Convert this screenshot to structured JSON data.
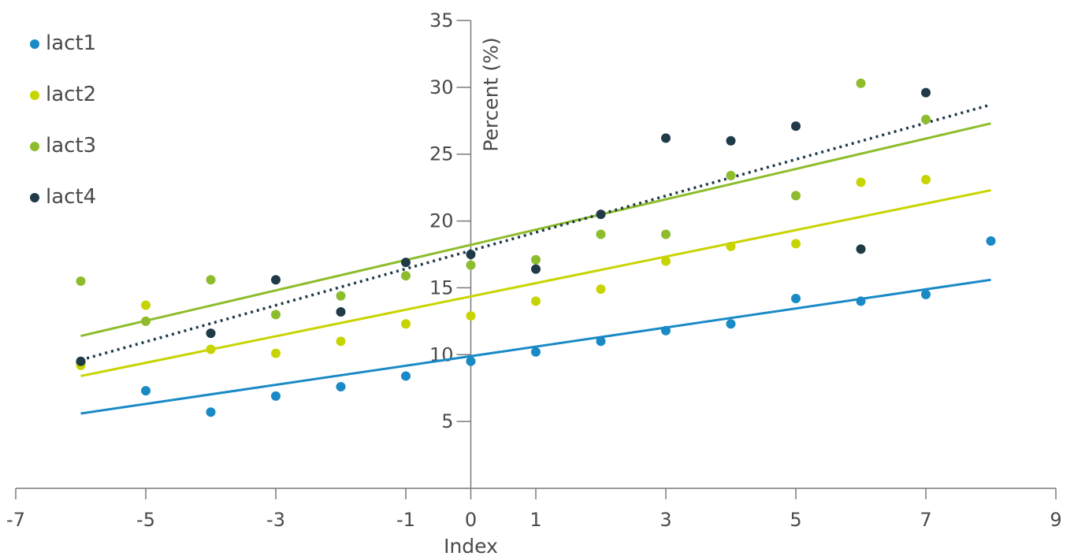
{
  "chart_data": {
    "type": "scatter",
    "title": "",
    "xlabel": "Index",
    "ylabel": "Percent (%)",
    "xlim": [
      -7,
      9
    ],
    "ylim": [
      0,
      35
    ],
    "x_ticks": [
      -7,
      -5,
      -3,
      -1,
      0,
      1,
      3,
      5,
      7,
      9
    ],
    "x_tick_labels": [
      "-7",
      "-5",
      "-3",
      "-1",
      "0",
      "1",
      "3",
      "5",
      "7",
      "9"
    ],
    "y_ticks": [
      5,
      10,
      15,
      20,
      25,
      30,
      35
    ],
    "y_tick_labels": [
      "5",
      "10",
      "15",
      "20",
      "25",
      "30",
      "35"
    ],
    "grid": false,
    "legend_position": "top-left",
    "series": [
      {
        "name": "lact1",
        "color": "#1a8ac6",
        "x": [
          -6,
          -5,
          -4,
          -3,
          -2,
          -1,
          0,
          1,
          2,
          3,
          4,
          5,
          6,
          7,
          8
        ],
        "y": [
          9.4,
          7.3,
          5.7,
          6.9,
          7.6,
          8.4,
          9.5,
          10.2,
          11.0,
          11.8,
          12.3,
          14.2,
          14.0,
          14.5,
          18.5
        ],
        "trend": {
          "x": [
            -6,
            8
          ],
          "y": [
            5.6,
            15.6
          ],
          "style": "solid"
        }
      },
      {
        "name": "lact2",
        "color": "#c8d400",
        "x": [
          -6,
          -5,
          -4,
          -3,
          -2,
          -1,
          0,
          1,
          2,
          3,
          4,
          5,
          6,
          7
        ],
        "y": [
          9.2,
          13.7,
          10.4,
          10.1,
          11.0,
          12.3,
          12.9,
          14.0,
          14.9,
          17.0,
          18.1,
          18.3,
          22.9,
          23.1
        ],
        "trend": {
          "x": [
            -6,
            8
          ],
          "y": [
            8.4,
            22.3
          ],
          "style": "solid"
        }
      },
      {
        "name": "lact3",
        "color": "#8dbd2c",
        "x": [
          -6,
          -5,
          -4,
          -3,
          -2,
          -1,
          0,
          1,
          2,
          3,
          4,
          5,
          6,
          7
        ],
        "y": [
          15.5,
          12.5,
          15.6,
          13.0,
          14.4,
          15.9,
          16.7,
          17.1,
          19.0,
          19.0,
          23.4,
          21.9,
          30.3,
          27.6
        ],
        "trend": {
          "x": [
            -6,
            8
          ],
          "y": [
            11.4,
            27.3
          ],
          "style": "solid"
        }
      },
      {
        "name": "lact4",
        "color": "#203a48",
        "x": [
          -6,
          -4,
          -3,
          -2,
          -1,
          0,
          1,
          2,
          3,
          4,
          5,
          6,
          7
        ],
        "y": [
          9.5,
          11.6,
          15.6,
          13.2,
          16.9,
          17.5,
          16.4,
          20.5,
          26.2,
          26.0,
          27.1,
          17.9,
          29.6
        ],
        "trend": {
          "x": [
            -6,
            8
          ],
          "y": [
            9.6,
            28.7
          ],
          "style": "dotted"
        }
      }
    ]
  }
}
